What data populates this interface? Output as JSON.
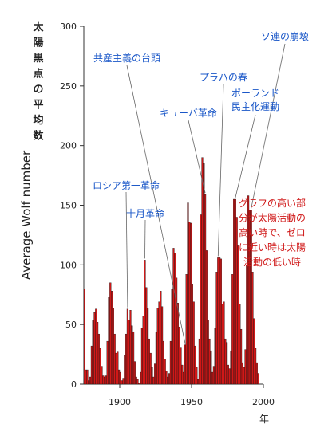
{
  "chart_data": {
    "type": "bar",
    "ylabel": "Average Wolf number",
    "ylabel_ja": "太陽黒点の平均数",
    "x_unit": "年",
    "xlim": [
      1875,
      2000
    ],
    "ylim": [
      0,
      300
    ],
    "x_ticks": [
      "1900",
      "1950",
      "2000"
    ],
    "y_ticks": [
      "0",
      "50",
      "100",
      "150",
      "200",
      "250",
      "300"
    ],
    "grid": false,
    "colors": {
      "bar": "#d01818",
      "bar_edge": "#111111",
      "annotation": "#1a57c8",
      "note": "#d01818"
    },
    "x": [
      1875,
      1876,
      1877,
      1878,
      1879,
      1880,
      1881,
      1882,
      1883,
      1884,
      1885,
      1886,
      1887,
      1888,
      1889,
      1890,
      1891,
      1892,
      1893,
      1894,
      1895,
      1896,
      1897,
      1898,
      1899,
      1900,
      1901,
      1902,
      1903,
      1904,
      1905,
      1906,
      1907,
      1908,
      1909,
      1910,
      1911,
      1912,
      1913,
      1914,
      1915,
      1916,
      1917,
      1918,
      1919,
      1920,
      1921,
      1922,
      1923,
      1924,
      1925,
      1926,
      1927,
      1928,
      1929,
      1930,
      1931,
      1932,
      1933,
      1934,
      1935,
      1936,
      1937,
      1938,
      1939,
      1940,
      1941,
      1942,
      1943,
      1944,
      1945,
      1946,
      1947,
      1948,
      1949,
      1950,
      1951,
      1952,
      1953,
      1954,
      1955,
      1956,
      1957,
      1958,
      1959,
      1960,
      1961,
      1962,
      1963,
      1964,
      1965,
      1966,
      1967,
      1968,
      1969,
      1970,
      1971,
      1972,
      1973,
      1974,
      1975,
      1976,
      1977,
      1978,
      1979,
      1980,
      1981,
      1982,
      1983,
      1984,
      1985,
      1986,
      1987,
      1988,
      1989,
      1990,
      1991,
      1992,
      1993,
      1994,
      1995,
      1996
    ],
    "values": [
      80,
      12,
      12,
      3,
      6,
      32,
      54,
      60,
      63,
      52,
      42,
      30,
      15,
      7,
      6,
      7,
      36,
      73,
      85,
      78,
      64,
      42,
      26,
      27,
      12,
      10,
      3,
      5,
      24,
      42,
      63,
      54,
      62,
      49,
      44,
      19,
      6,
      4,
      1,
      10,
      47,
      57,
      104,
      81,
      64,
      38,
      26,
      14,
      6,
      17,
      44,
      64,
      69,
      78,
      65,
      36,
      21,
      11,
      6,
      9,
      36,
      80,
      114,
      110,
      89,
      68,
      48,
      31,
      16,
      10,
      33,
      92,
      152,
      136,
      135,
      84,
      69,
      32,
      14,
      4,
      38,
      142,
      190,
      185,
      159,
      112,
      54,
      38,
      28,
      10,
      15,
      47,
      94,
      106,
      106,
      105,
      67,
      69,
      38,
      35,
      16,
      13,
      28,
      92,
      155,
      155,
      140,
      116,
      67,
      46,
      18,
      14,
      29,
      100,
      158,
      146,
      146,
      94,
      55,
      30,
      18,
      9
    ]
  },
  "annotations": [
    {
      "text": "ロシア第一革命",
      "year": 1905
    },
    {
      "text": "十月革命",
      "year": 1917
    },
    {
      "text": "共産主義の台頭",
      "year": 1945
    },
    {
      "text": "キューバ革命",
      "year": 1959
    },
    {
      "text": "プラハの春",
      "year": 1968
    },
    {
      "text": "ポーランド",
      "line2": "民主化運動",
      "year": 1980
    },
    {
      "text": "ソ連の崩壊",
      "year": 1991
    }
  ],
  "note": {
    "lines": [
      "グラフの高い部",
      "分が太陽活動の",
      "高い時で、ゼロ",
      "に近い時は太陽",
      "活動の低い時"
    ]
  }
}
